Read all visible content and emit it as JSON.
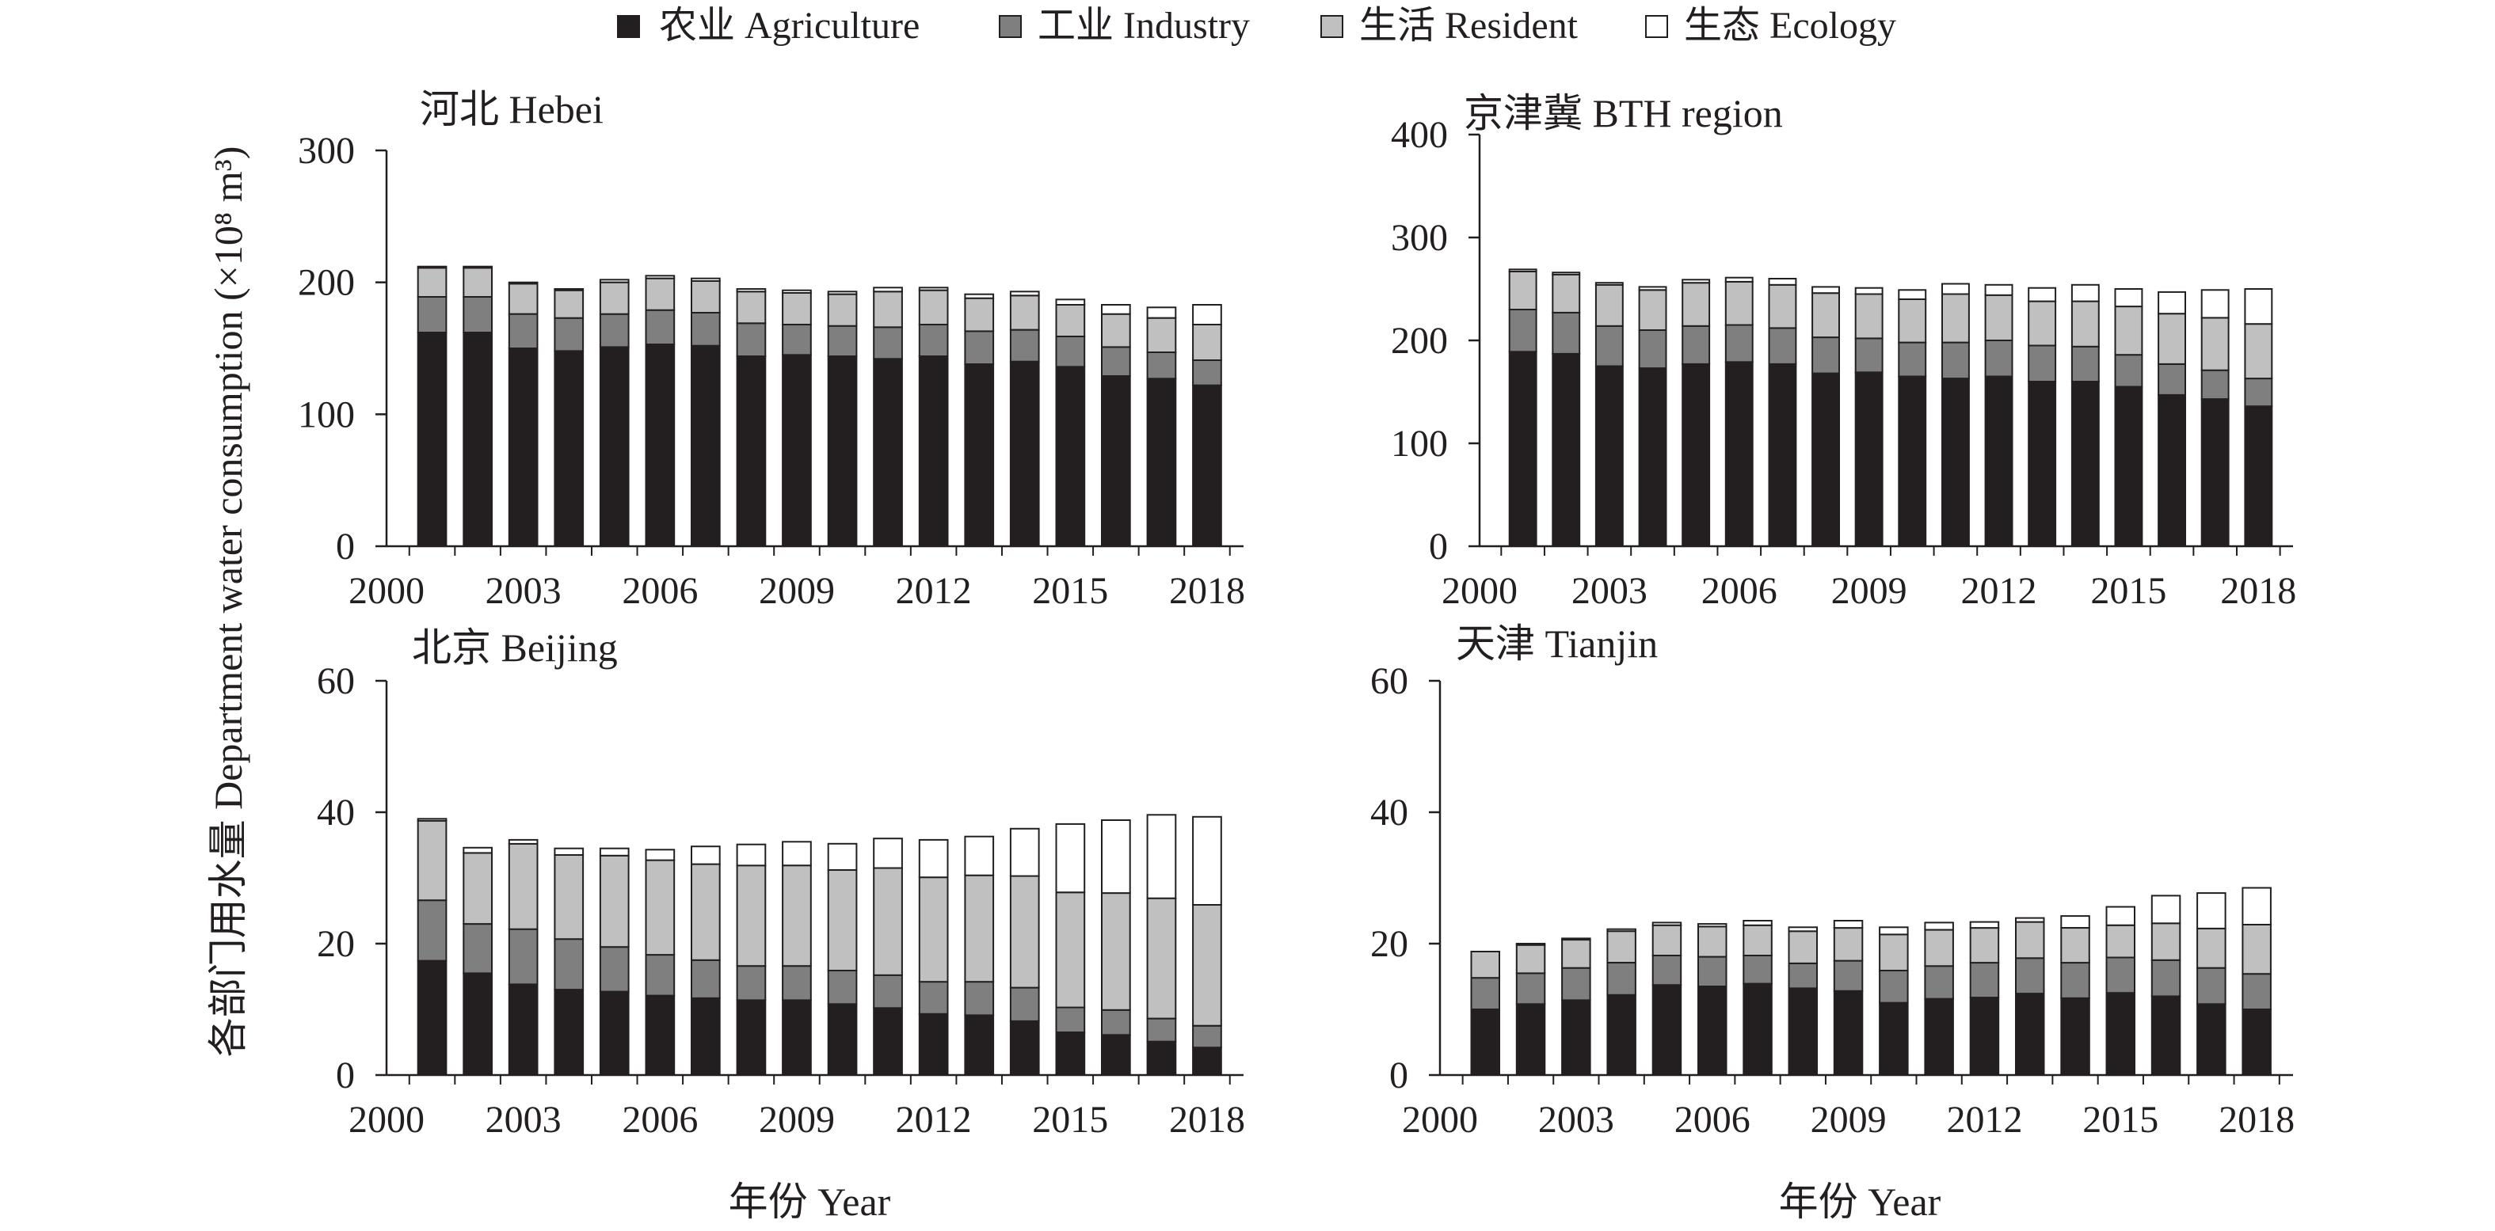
{
  "legend": [
    {
      "label": "农业 Agriculture",
      "color": "#231f20"
    },
    {
      "label": "工业 Industry",
      "color": "#7f7f7f"
    },
    {
      "label": "生活 Resident",
      "color": "#c0c0c0"
    },
    {
      "label": "生态 Ecology",
      "color": "#ffffff"
    }
  ],
  "ylabel": "各部门用水量 Department water consumption (×10⁸ m³)",
  "xlabel": "年份 Year",
  "chart_data": [
    {
      "type": "bar",
      "stacked": true,
      "title": "河北 Hebei",
      "x": [
        2001,
        2002,
        2003,
        2004,
        2005,
        2006,
        2007,
        2008,
        2009,
        2010,
        2011,
        2012,
        2013,
        2014,
        2015,
        2016,
        2017,
        2018
      ],
      "xlim": [
        2000,
        2018.8
      ],
      "xticks": [
        "2000",
        "2003",
        "2006",
        "2009",
        "2012",
        "2015",
        "2018"
      ],
      "ylim": [
        0,
        300
      ],
      "yticks": [
        "0",
        "100",
        "200",
        "300"
      ],
      "series": [
        {
          "name": "农业 Agriculture",
          "values": [
            162,
            162,
            150,
            148,
            151,
            153,
            152,
            144,
            145,
            144,
            142,
            144,
            138,
            140,
            136,
            129,
            127,
            122
          ]
        },
        {
          "name": "工业 Industry",
          "values": [
            27,
            27,
            26,
            25,
            25,
            26,
            25,
            25,
            23,
            23,
            24,
            24,
            25,
            24,
            23,
            22,
            20,
            19
          ]
        },
        {
          "name": "生活 Resident",
          "values": [
            22,
            22,
            23,
            21,
            24,
            24,
            24,
            24,
            24,
            24,
            27,
            26,
            25,
            26,
            24,
            25,
            26,
            27
          ]
        },
        {
          "name": "生态 Ecology",
          "values": [
            1,
            1,
            1,
            1,
            2,
            2,
            2,
            2,
            2,
            2,
            3,
            2,
            3,
            3,
            4,
            7,
            8,
            15
          ]
        }
      ]
    },
    {
      "type": "bar",
      "stacked": true,
      "title": "京津冀 BTH region",
      "x": [
        2001,
        2002,
        2003,
        2004,
        2005,
        2006,
        2007,
        2008,
        2009,
        2010,
        2011,
        2012,
        2013,
        2014,
        2015,
        2016,
        2017,
        2018
      ],
      "xlim": [
        2000,
        2018.8
      ],
      "xticks": [
        "2000",
        "2003",
        "2006",
        "2009",
        "2012",
        "2015",
        "2018"
      ],
      "ylim": [
        0,
        400
      ],
      "yticks": [
        "0",
        "100",
        "200",
        "300",
        "400"
      ],
      "series": [
        {
          "name": "农业 Agriculture",
          "values": [
            189,
            187,
            175,
            173,
            177,
            179,
            177,
            168,
            169,
            165,
            163,
            165,
            160,
            160,
            155,
            147,
            143,
            136
          ]
        },
        {
          "name": "工业 Industry",
          "values": [
            41,
            40,
            39,
            37,
            37,
            36,
            35,
            35,
            33,
            33,
            35,
            35,
            35,
            34,
            31,
            30,
            28,
            27
          ]
        },
        {
          "name": "生活 Resident",
          "values": [
            37,
            37,
            40,
            39,
            42,
            42,
            42,
            43,
            43,
            42,
            47,
            44,
            43,
            44,
            47,
            49,
            51,
            53
          ]
        },
        {
          "name": "生态 Ecology",
          "values": [
            2,
            2,
            2,
            3,
            3,
            4,
            6,
            6,
            6,
            9,
            10,
            10,
            13,
            16,
            17,
            21,
            27,
            34
          ]
        }
      ]
    },
    {
      "type": "bar",
      "stacked": true,
      "title": "北京 Beijing",
      "x": [
        2001,
        2002,
        2003,
        2004,
        2005,
        2006,
        2007,
        2008,
        2009,
        2010,
        2011,
        2012,
        2013,
        2014,
        2015,
        2016,
        2017,
        2018
      ],
      "xlim": [
        2000,
        2018.8
      ],
      "xticks": [
        "2000",
        "2003",
        "2006",
        "2009",
        "2012",
        "2015",
        "2018"
      ],
      "ylim": [
        0,
        60
      ],
      "yticks": [
        "0",
        "20",
        "40",
        "60"
      ],
      "series": [
        {
          "name": "农业 Agriculture",
          "values": [
            17.4,
            15.5,
            13.8,
            13.0,
            12.7,
            12.1,
            11.7,
            11.4,
            11.4,
            10.8,
            10.2,
            9.3,
            9.1,
            8.2,
            6.5,
            6.1,
            5.1,
            4.2
          ]
        },
        {
          "name": "工业 Industry",
          "values": [
            9.2,
            7.5,
            8.4,
            7.7,
            6.8,
            6.2,
            5.8,
            5.2,
            5.2,
            5.1,
            5.0,
            4.9,
            5.1,
            5.1,
            3.8,
            3.8,
            3.5,
            3.3
          ]
        },
        {
          "name": "生活 Resident",
          "values": [
            12.1,
            10.8,
            13.0,
            12.8,
            13.9,
            14.4,
            14.6,
            15.3,
            15.3,
            15.3,
            16.3,
            15.9,
            16.2,
            17.0,
            17.5,
            17.8,
            18.3,
            18.4
          ]
        },
        {
          "name": "生态 Ecology",
          "values": [
            0.3,
            0.8,
            0.6,
            1.0,
            1.1,
            1.6,
            2.7,
            3.2,
            3.6,
            4.0,
            4.5,
            5.7,
            5.9,
            7.2,
            10.4,
            11.1,
            12.7,
            13.4
          ]
        }
      ]
    },
    {
      "type": "bar",
      "stacked": true,
      "title": "天津 Tianjin",
      "x": [
        2001,
        2002,
        2003,
        2004,
        2005,
        2006,
        2007,
        2008,
        2009,
        2010,
        2011,
        2012,
        2013,
        2014,
        2015,
        2016,
        2017,
        2018
      ],
      "xlim": [
        2000,
        2018.8
      ],
      "xticks": [
        "2000",
        "2003",
        "2006",
        "2009",
        "2012",
        "2015",
        "2018"
      ],
      "ylim": [
        0,
        60
      ],
      "yticks": [
        "0",
        "20",
        "40",
        "60"
      ],
      "series": [
        {
          "name": "农业 Agriculture",
          "values": [
            10.0,
            10.8,
            11.4,
            12.2,
            13.7,
            13.5,
            13.9,
            13.2,
            12.8,
            11.0,
            11.6,
            11.8,
            12.4,
            11.7,
            12.5,
            12.0,
            10.8,
            10.0
          ]
        },
        {
          "name": "工业 Industry",
          "values": [
            4.8,
            4.7,
            4.9,
            4.9,
            4.5,
            4.5,
            4.3,
            3.8,
            4.6,
            4.9,
            5.0,
            5.3,
            5.4,
            5.4,
            5.4,
            5.5,
            5.5,
            5.4
          ]
        },
        {
          "name": "生活 Resident",
          "values": [
            4.0,
            4.3,
            4.3,
            4.8,
            4.6,
            4.6,
            4.6,
            4.9,
            5.0,
            5.5,
            5.5,
            5.3,
            5.5,
            5.3,
            4.9,
            5.6,
            6.0,
            7.5
          ]
        },
        {
          "name": "生态 Ecology",
          "values": [
            0,
            0.2,
            0.2,
            0.3,
            0.4,
            0.4,
            0.7,
            0.6,
            1.1,
            1.1,
            1.1,
            0.9,
            0.6,
            1.8,
            2.8,
            4.2,
            5.4,
            5.6
          ]
        }
      ]
    }
  ]
}
